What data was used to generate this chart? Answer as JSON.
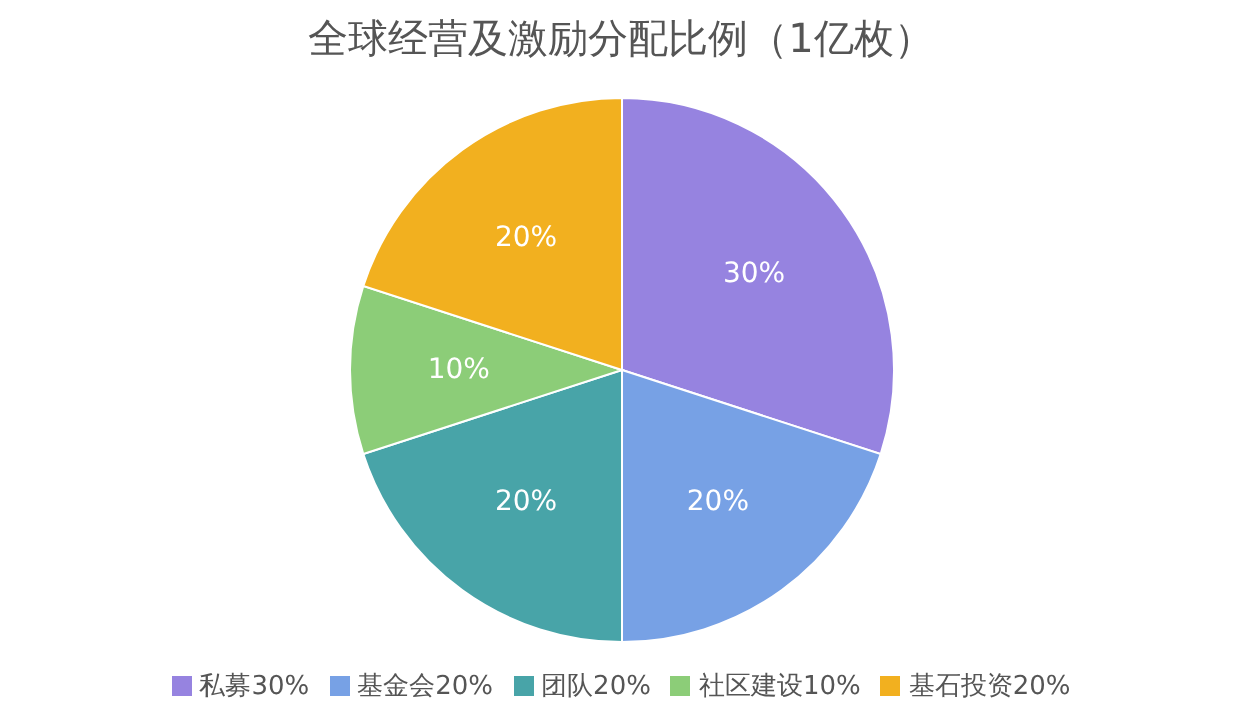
{
  "chart_data": {
    "type": "pie",
    "title": "全球经营及激励分配比例（1亿枚）",
    "categories": [
      "私募30%",
      "基金会20%",
      "团队20%",
      "社区建设10%",
      "基石投资20%"
    ],
    "values": [
      30,
      20,
      20,
      10,
      20
    ],
    "value_labels": [
      "30%",
      "20%",
      "20%",
      "10%",
      "20%"
    ],
    "colors": [
      "#9683e0",
      "#77a1e5",
      "#48a4a8",
      "#8ccd78",
      "#f2b01f"
    ],
    "legend": "bottom"
  }
}
